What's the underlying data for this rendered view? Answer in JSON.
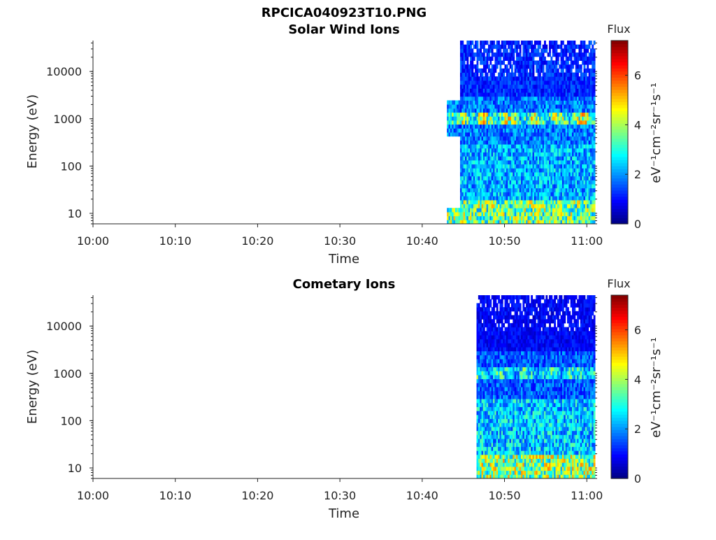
{
  "figure": {
    "title": "RPCICA040923T10.PNG"
  },
  "colormap": {
    "name": "jet",
    "stops": [
      "#00007f",
      "#0000ff",
      "#007fff",
      "#00ffff",
      "#7fff7f",
      "#ffff00",
      "#ff7f00",
      "#ff0000",
      "#7f0000"
    ]
  },
  "chart_data": [
    {
      "type": "heatmap",
      "title": "Solar Wind Ions",
      "xlabel": "Time",
      "ylabel": "Energy (eV)",
      "xlim": [
        "10:00",
        "11:01"
      ],
      "xticks": [
        "10:00",
        "10:10",
        "10:20",
        "10:30",
        "10:40",
        "10:50",
        "11:00"
      ],
      "yscale": "log",
      "ylim": [
        6,
        45000
      ],
      "yticks": [
        "10",
        "100",
        "1000",
        "10000"
      ],
      "colorbar": {
        "title": "Flux",
        "label": "eV⁻¹cm⁻²sr⁻¹s⁻¹",
        "range": [
          0,
          7.4
        ],
        "ticks": [
          "0",
          "2",
          "4",
          "6"
        ]
      },
      "data_start": "10:43",
      "data_end": "11:01",
      "typical_flux": {
        "high_energy_above_3000eV": 1.2,
        "mid_energy_300_3000eV": 1.8,
        "peak_near_1000eV": 4.0,
        "low_energy_30_300eV": 2.2,
        "lowest_energy_below_20eV": 3.6
      }
    },
    {
      "type": "heatmap",
      "title": "Cometary Ions",
      "xlabel": "Time",
      "ylabel": "Energy (eV)",
      "xlim": [
        "10:00",
        "11:01"
      ],
      "xticks": [
        "10:00",
        "10:10",
        "10:20",
        "10:30",
        "10:40",
        "10:50",
        "11:00"
      ],
      "yscale": "log",
      "ylim": [
        6,
        45000
      ],
      "yticks": [
        "10",
        "100",
        "1000",
        "10000"
      ],
      "colorbar": {
        "title": "Flux",
        "label": "eV⁻¹cm⁻²sr⁻¹s⁻¹",
        "range": [
          0,
          7.4
        ],
        "ticks": [
          "0",
          "2",
          "4",
          "6"
        ]
      },
      "data_start": "10:45",
      "data_end": "11:01",
      "typical_flux": {
        "high_energy_above_3000eV": 0.9,
        "mid_energy_300_3000eV": 1.6,
        "peak_near_1000eV": 3.0,
        "low_energy_30_300eV": 2.4,
        "lowest_energy_below_20eV": 3.8
      }
    }
  ]
}
